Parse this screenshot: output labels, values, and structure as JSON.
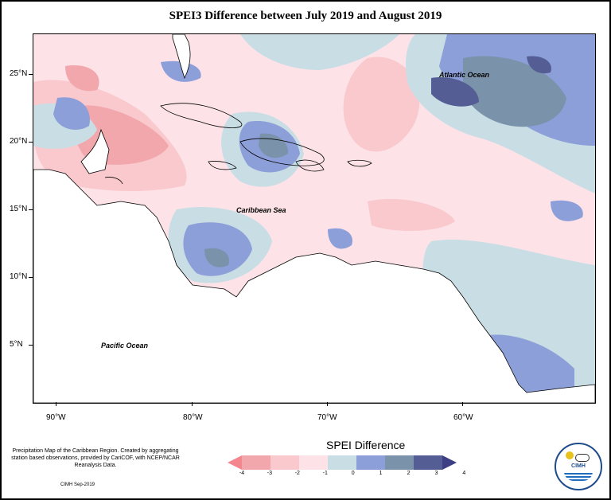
{
  "title": "SPEI3 Difference between July 2019 and August 2019",
  "y_axis_labels": [
    "25°N",
    "20°N",
    "15°N",
    "10°N",
    "5°N"
  ],
  "x_axis_labels": [
    "90°W",
    "80°W",
    "70°W",
    "60°W"
  ],
  "place_labels": {
    "atlantic": "Atlantic Ocean",
    "caribbean": "Caribbean Sea",
    "pacific": "Pacific Ocean"
  },
  "note": "Precipitation Map of the Caribbean Region. Created by aggregating station based observations, provided by CariCOF, with NCEP/NCAR Reanalysis Data.",
  "credit": "CIMH Sep-2019",
  "legend": {
    "title": "SPEI Difference",
    "ticks": [
      "-4",
      "-3",
      "-2",
      "-1",
      "0",
      "1",
      "2",
      "3",
      "4"
    ],
    "colors": [
      "#f3868f",
      "#f2a7ad",
      "#f9c9ce",
      "#fde3e8",
      "#c9dde5",
      "#8d9fd8",
      "#7b93aa",
      "#545e94",
      "#3c3f84"
    ]
  },
  "logo_text": "CIMH"
}
